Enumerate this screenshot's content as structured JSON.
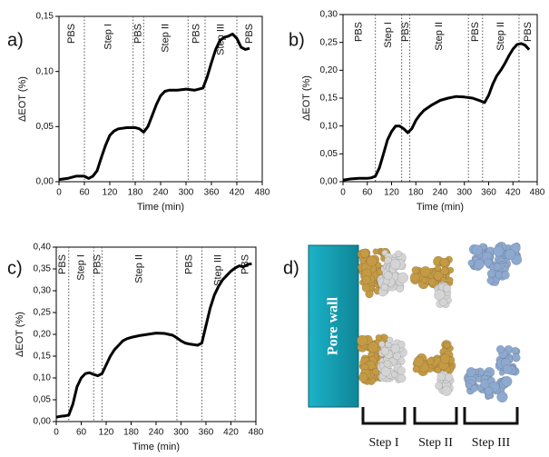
{
  "chart_data": [
    {
      "type": "line",
      "label": "a)",
      "xlabel": "Time (min)",
      "ylabel": "ΔEOT (%)",
      "xlim": [
        0,
        480
      ],
      "xticks": [
        0,
        60,
        120,
        180,
        240,
        300,
        360,
        420,
        480
      ],
      "ylim": [
        0,
        0.15
      ],
      "yticks": [
        {
          "value": 0,
          "label": "0,00"
        },
        {
          "value": 0.05,
          "label": "0,05"
        },
        {
          "value": 0.1,
          "label": "0,10"
        },
        {
          "value": 0.15,
          "label": "0,15"
        }
      ],
      "color": "#000000",
      "x": [
        0,
        20,
        40,
        60,
        70,
        80,
        90,
        100,
        110,
        120,
        130,
        140,
        160,
        180,
        190,
        200,
        210,
        220,
        230,
        240,
        250,
        260,
        280,
        300,
        320,
        340,
        350,
        360,
        370,
        380,
        390,
        400,
        410,
        420,
        430,
        440,
        450
      ],
      "values": [
        0.002,
        0.003,
        0.005,
        0.005,
        0.003,
        0.005,
        0.01,
        0.022,
        0.033,
        0.042,
        0.046,
        0.048,
        0.049,
        0.049,
        0.048,
        0.045,
        0.05,
        0.06,
        0.07,
        0.078,
        0.082,
        0.083,
        0.083,
        0.084,
        0.083,
        0.085,
        0.095,
        0.108,
        0.12,
        0.128,
        0.131,
        0.132,
        0.134,
        0.13,
        0.122,
        0.12,
        0.121
      ],
      "vlines": [
        60,
        175,
        200,
        305,
        345,
        420
      ],
      "regions": [
        "PBS",
        "Step I",
        "PBS",
        "Step II",
        "PBS",
        "Step III",
        "PBS"
      ]
    },
    {
      "type": "line",
      "label": "b)",
      "xlabel": "Time (min)",
      "ylabel": "ΔEOT (%)",
      "xlim": [
        0,
        480
      ],
      "xticks": [
        0,
        60,
        120,
        180,
        240,
        300,
        360,
        420,
        480
      ],
      "ylim": [
        0,
        0.3
      ],
      "yticks": [
        {
          "value": 0,
          "label": "0,00"
        },
        {
          "value": 0.05,
          "label": "0,05"
        },
        {
          "value": 0.1,
          "label": "0,10"
        },
        {
          "value": 0.15,
          "label": "0,15"
        },
        {
          "value": 0.2,
          "label": "0,20"
        },
        {
          "value": 0.25,
          "label": "0,25"
        },
        {
          "value": 0.3,
          "label": "0,30"
        }
      ],
      "color": "#000000",
      "x": [
        0,
        20,
        40,
        60,
        70,
        80,
        90,
        100,
        110,
        120,
        130,
        140,
        150,
        160,
        170,
        180,
        190,
        200,
        220,
        240,
        260,
        280,
        300,
        320,
        340,
        350,
        360,
        370,
        380,
        390,
        400,
        410,
        420,
        430,
        440,
        450,
        460
      ],
      "values": [
        0.003,
        0.005,
        0.006,
        0.006,
        0.007,
        0.01,
        0.025,
        0.05,
        0.075,
        0.09,
        0.1,
        0.1,
        0.095,
        0.088,
        0.095,
        0.11,
        0.12,
        0.128,
        0.138,
        0.146,
        0.15,
        0.153,
        0.152,
        0.15,
        0.145,
        0.142,
        0.155,
        0.175,
        0.19,
        0.2,
        0.212,
        0.226,
        0.238,
        0.246,
        0.248,
        0.245,
        0.237
      ],
      "vlines": [
        80,
        145,
        165,
        310,
        345,
        435
      ],
      "regions": [
        "PBS",
        "Step I",
        "PBS",
        "Step II",
        "PBS",
        "Step II",
        "PBS"
      ]
    },
    {
      "type": "line",
      "label": "c)",
      "xlabel": "Time (min)",
      "ylabel": "ΔEOT (%)",
      "xlim": [
        0,
        480
      ],
      "xticks": [
        0,
        60,
        120,
        180,
        240,
        300,
        360,
        420,
        480
      ],
      "ylim": [
        0,
        0.4
      ],
      "yticks": [
        {
          "value": 0,
          "label": "0,00"
        },
        {
          "value": 0.05,
          "label": "0,05"
        },
        {
          "value": 0.1,
          "label": "0,10"
        },
        {
          "value": 0.15,
          "label": "0,15"
        },
        {
          "value": 0.2,
          "label": "0,20"
        },
        {
          "value": 0.25,
          "label": "0,25"
        },
        {
          "value": 0.3,
          "label": "0,30"
        },
        {
          "value": 0.35,
          "label": "0,35"
        },
        {
          "value": 0.4,
          "label": "0,40"
        }
      ],
      "color": "#000000",
      "x": [
        0,
        10,
        20,
        30,
        40,
        50,
        60,
        70,
        80,
        90,
        100,
        110,
        120,
        130,
        140,
        150,
        160,
        170,
        180,
        200,
        220,
        240,
        260,
        280,
        290,
        300,
        310,
        320,
        340,
        350,
        360,
        370,
        380,
        390,
        400,
        410,
        420,
        430,
        440,
        450,
        460,
        470
      ],
      "values": [
        0.01,
        0.012,
        0.013,
        0.015,
        0.04,
        0.08,
        0.1,
        0.11,
        0.112,
        0.108,
        0.105,
        0.11,
        0.13,
        0.15,
        0.165,
        0.175,
        0.185,
        0.19,
        0.193,
        0.197,
        0.2,
        0.203,
        0.202,
        0.198,
        0.192,
        0.185,
        0.18,
        0.178,
        0.175,
        0.18,
        0.22,
        0.26,
        0.29,
        0.31,
        0.325,
        0.335,
        0.345,
        0.352,
        0.357,
        0.355,
        0.36,
        0.362
      ],
      "vlines": [
        30,
        90,
        110,
        290,
        350,
        430
      ],
      "regions": [
        "PBS",
        "Step I",
        "PBS",
        "Step II",
        "PBS",
        "Step III",
        "PBS"
      ]
    }
  ],
  "diagram": {
    "label": "d)",
    "wall": "Pore wall",
    "steps": [
      "Step I",
      "Step II",
      "Step III"
    ]
  }
}
